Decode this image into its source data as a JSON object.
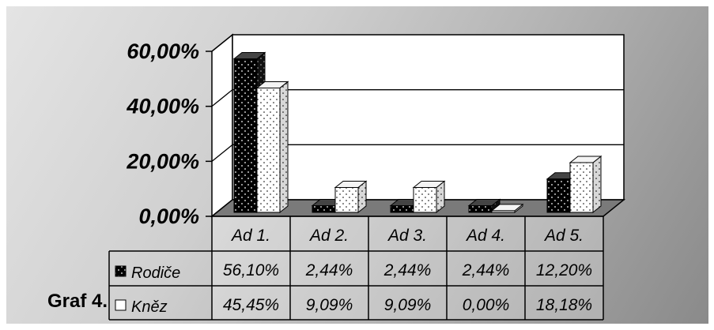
{
  "chart_data": {
    "type": "bar",
    "categories": [
      "Ad 1.",
      "Ad 2.",
      "Ad 3.",
      "Ad 4.",
      "Ad 5."
    ],
    "series": [
      {
        "name": "Rodiče",
        "values": [
          56.1,
          2.44,
          2.44,
          2.44,
          12.2
        ],
        "labels": [
          "56,10%",
          "2,44%",
          "2,44%",
          "2,44%",
          "12,20%"
        ],
        "pattern": "dark-dotted"
      },
      {
        "name": "Kněz",
        "values": [
          45.45,
          9.09,
          9.09,
          0.0,
          18.18
        ],
        "labels": [
          "45,45%",
          "9,09%",
          "9,09%",
          "0,00%",
          "18,18%"
        ],
        "pattern": "light-dotted"
      }
    ],
    "y_ticks": [
      "0,00%",
      "20,00%",
      "40,00%",
      "60,00%"
    ],
    "ylim": [
      0,
      60
    ],
    "grid": true,
    "legend": "data-table-left"
  },
  "caption": "Graf 4."
}
